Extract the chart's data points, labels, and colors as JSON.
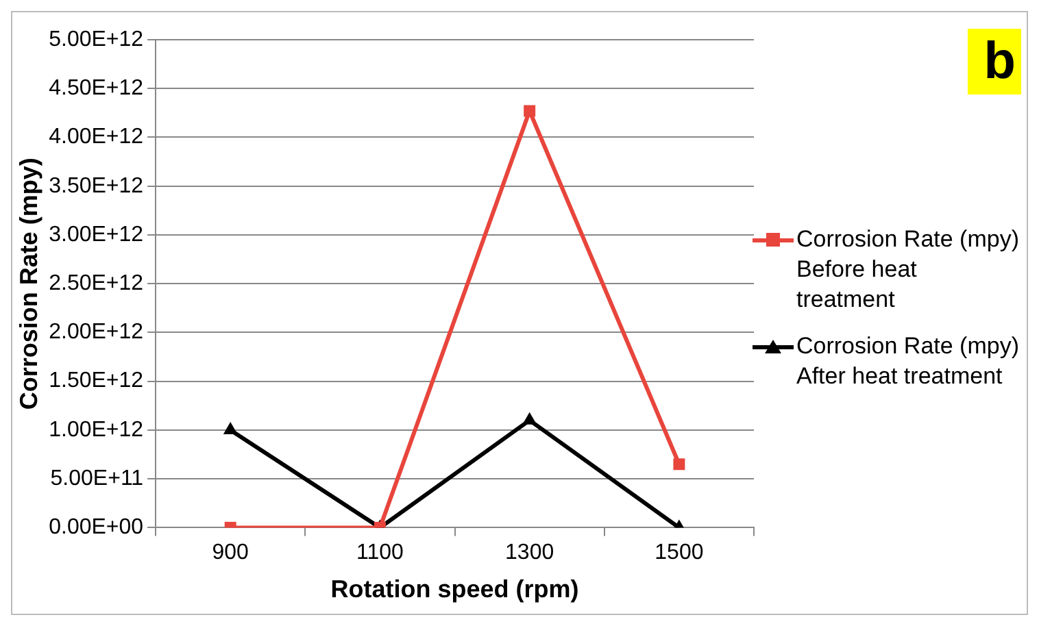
{
  "chart_data": {
    "type": "line",
    "xlabel": "Rotation speed (rpm)",
    "ylabel": "Corrosion Rate (mpy)",
    "annotations": [
      "b"
    ],
    "categories": [
      "900",
      "1100",
      "1300",
      "1500"
    ],
    "series": [
      {
        "name": "Corrosion Rate (mpy) Before heat treatment",
        "color": "#e8453c",
        "marker": "square",
        "values": [
          0,
          0,
          4270000000000.0,
          650000000000.0
        ]
      },
      {
        "name": "Corrosion Rate (mpy) After heat treatment",
        "color": "#000000",
        "marker": "triangle",
        "values": [
          1000000000000.0,
          0,
          1100000000000.0,
          0
        ]
      }
    ],
    "ylim": [
      0,
      5000000000000.0
    ],
    "yticks": [
      {
        "value": 0,
        "label": "0.00E+00"
      },
      {
        "value": 500000000000.0,
        "label": "5.00E+11"
      },
      {
        "value": 1000000000000.0,
        "label": "1.00E+12"
      },
      {
        "value": 1500000000000.0,
        "label": "1.50E+12"
      },
      {
        "value": 2000000000000.0,
        "label": "2.00E+12"
      },
      {
        "value": 2500000000000.0,
        "label": "2.50E+12"
      },
      {
        "value": 3000000000000.0,
        "label": "3.00E+12"
      },
      {
        "value": 3500000000000.0,
        "label": "3.50E+12"
      },
      {
        "value": 4000000000000.0,
        "label": "4.00E+12"
      },
      {
        "value": 4500000000000.0,
        "label": "4.50E+12"
      },
      {
        "value": 5000000000000.0,
        "label": "5.00E+12"
      }
    ],
    "grid": "y",
    "legend": "right",
    "line_style": "solid"
  }
}
